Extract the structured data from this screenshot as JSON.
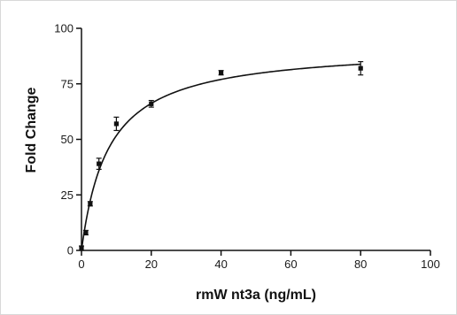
{
  "chart_data": {
    "type": "scatter",
    "title": "",
    "xlabel": "rmW nt3a (ng/mL)",
    "ylabel": "Fold Change",
    "xlim": [
      0,
      100
    ],
    "ylim": [
      0,
      100
    ],
    "x_ticks": [
      0,
      20,
      40,
      60,
      80,
      100
    ],
    "y_ticks": [
      0,
      25,
      50,
      75,
      100
    ],
    "x_tick_labels": [
      "0",
      "20",
      "40",
      "60",
      "80",
      "100"
    ],
    "y_tick_labels": [
      "0",
      "25",
      "50",
      "75",
      "100"
    ],
    "grid": false,
    "series": [
      {
        "points": [
          {
            "x": 0,
            "y": 1,
            "err": 1
          },
          {
            "x": 1.25,
            "y": 8,
            "err": 1
          },
          {
            "x": 2.5,
            "y": 21,
            "err": 1
          },
          {
            "x": 5,
            "y": 39,
            "err": 2.5
          },
          {
            "x": 10,
            "y": 57,
            "err": 3
          },
          {
            "x": 20,
            "y": 66,
            "err": 1.5
          },
          {
            "x": 40,
            "y": 80,
            "err": 1
          },
          {
            "x": 80,
            "y": 82,
            "err": 3
          }
        ]
      }
    ],
    "fit_curve": {
      "model": "one-site binding",
      "bmax": 92,
      "kd": 7.8
    },
    "colors": {
      "marker": "#111111",
      "curve": "#111111",
      "axis": "#111111"
    }
  }
}
